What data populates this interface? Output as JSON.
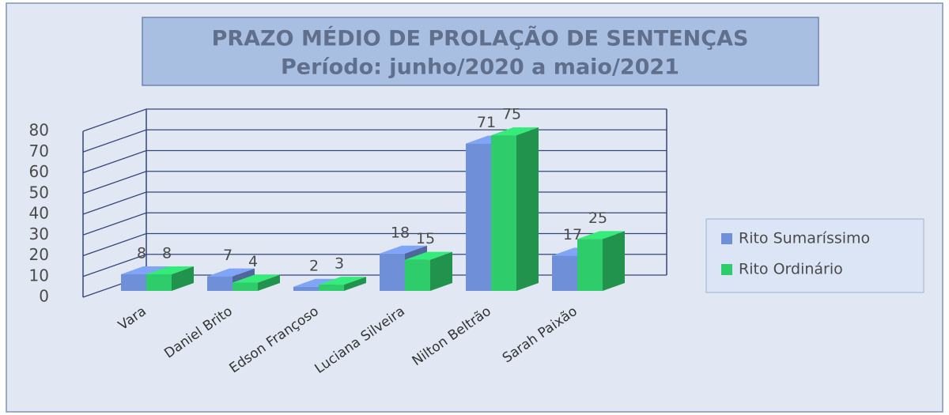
{
  "chart_data": {
    "type": "bar3d",
    "title": [
      "PRAZO MÉDIO DE PROLAÇÃO DE SENTENÇAS",
      "Período: junho/2020 a maio/2021"
    ],
    "categories": [
      "Vara",
      "Daniel Brito",
      "Edson Françoso",
      "Luciana Silveira",
      "Nilton Beltrão",
      "Sarah Paixão"
    ],
    "series": [
      {
        "name": "Rito Sumaríssimo",
        "color": "#6f8fd8",
        "values": [
          8,
          7,
          2,
          18,
          71,
          17
        ]
      },
      {
        "name": "Rito Ordinário",
        "color": "#2ecc6a",
        "values": [
          8,
          4,
          3,
          15,
          75,
          25
        ]
      }
    ],
    "ylim": [
      0,
      80
    ],
    "yticks": [
      0,
      10,
      20,
      30,
      40,
      50,
      60,
      70,
      80
    ],
    "grid": true,
    "legend": "right"
  }
}
